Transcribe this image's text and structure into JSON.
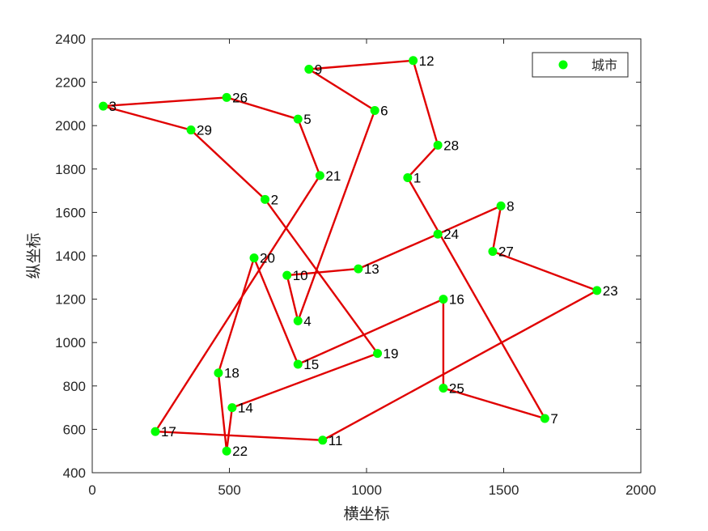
{
  "chart_data": {
    "type": "scatter",
    "title": "",
    "xlabel": "横坐标",
    "ylabel": "纵坐标",
    "xlim": [
      0,
      2000
    ],
    "ylim": [
      400,
      2400
    ],
    "xticks": [
      0,
      500,
      1000,
      1500,
      2000
    ],
    "yticks": [
      400,
      600,
      800,
      1000,
      1200,
      1400,
      1600,
      1800,
      2000,
      2200,
      2400
    ],
    "grid": false,
    "legend": {
      "entries": [
        "城市"
      ],
      "placement": "top-right"
    },
    "colors": {
      "points": "#00ff00",
      "route": "#e00000",
      "axes": "#262626"
    },
    "series": [
      {
        "name": "城市",
        "points": [
          {
            "label": "1",
            "x": 1150,
            "y": 1760
          },
          {
            "label": "2",
            "x": 630,
            "y": 1660
          },
          {
            "label": "3",
            "x": 40,
            "y": 2090
          },
          {
            "label": "4",
            "x": 750,
            "y": 1100
          },
          {
            "label": "5",
            "x": 750,
            "y": 2030
          },
          {
            "label": "6",
            "x": 1030,
            "y": 2070
          },
          {
            "label": "7",
            "x": 1650,
            "y": 650
          },
          {
            "label": "8",
            "x": 1490,
            "y": 1630
          },
          {
            "label": "9",
            "x": 790,
            "y": 2260
          },
          {
            "label": "10",
            "x": 710,
            "y": 1310
          },
          {
            "label": "11",
            "x": 840,
            "y": 550
          },
          {
            "label": "12",
            "x": 1170,
            "y": 2300
          },
          {
            "label": "13",
            "x": 970,
            "y": 1340
          },
          {
            "label": "14",
            "x": 510,
            "y": 700
          },
          {
            "label": "15",
            "x": 750,
            "y": 900
          },
          {
            "label": "16",
            "x": 1280,
            "y": 1200
          },
          {
            "label": "17",
            "x": 230,
            "y": 590
          },
          {
            "label": "18",
            "x": 460,
            "y": 860
          },
          {
            "label": "19",
            "x": 1040,
            "y": 950
          },
          {
            "label": "20",
            "x": 590,
            "y": 1390
          },
          {
            "label": "21",
            "x": 830,
            "y": 1770
          },
          {
            "label": "22",
            "x": 490,
            "y": 500
          },
          {
            "label": "23",
            "x": 1840,
            "y": 1240
          },
          {
            "label": "24",
            "x": 1260,
            "y": 1500
          },
          {
            "label": "25",
            "x": 1280,
            "y": 790
          },
          {
            "label": "26",
            "x": 490,
            "y": 2130
          },
          {
            "label": "27",
            "x": 1460,
            "y": 1420
          },
          {
            "label": "28",
            "x": 1260,
            "y": 1910
          },
          {
            "label": "29",
            "x": 360,
            "y": 1980
          }
        ]
      }
    ],
    "route": [
      "1",
      "28",
      "12",
      "9",
      "6",
      "4",
      "10",
      "13",
      "24",
      "8",
      "27",
      "23",
      "11",
      "17",
      "21",
      "5",
      "26",
      "3",
      "29",
      "2",
      "19",
      "14",
      "22",
      "18",
      "20",
      "15",
      "16",
      "25",
      "7",
      "1"
    ]
  }
}
